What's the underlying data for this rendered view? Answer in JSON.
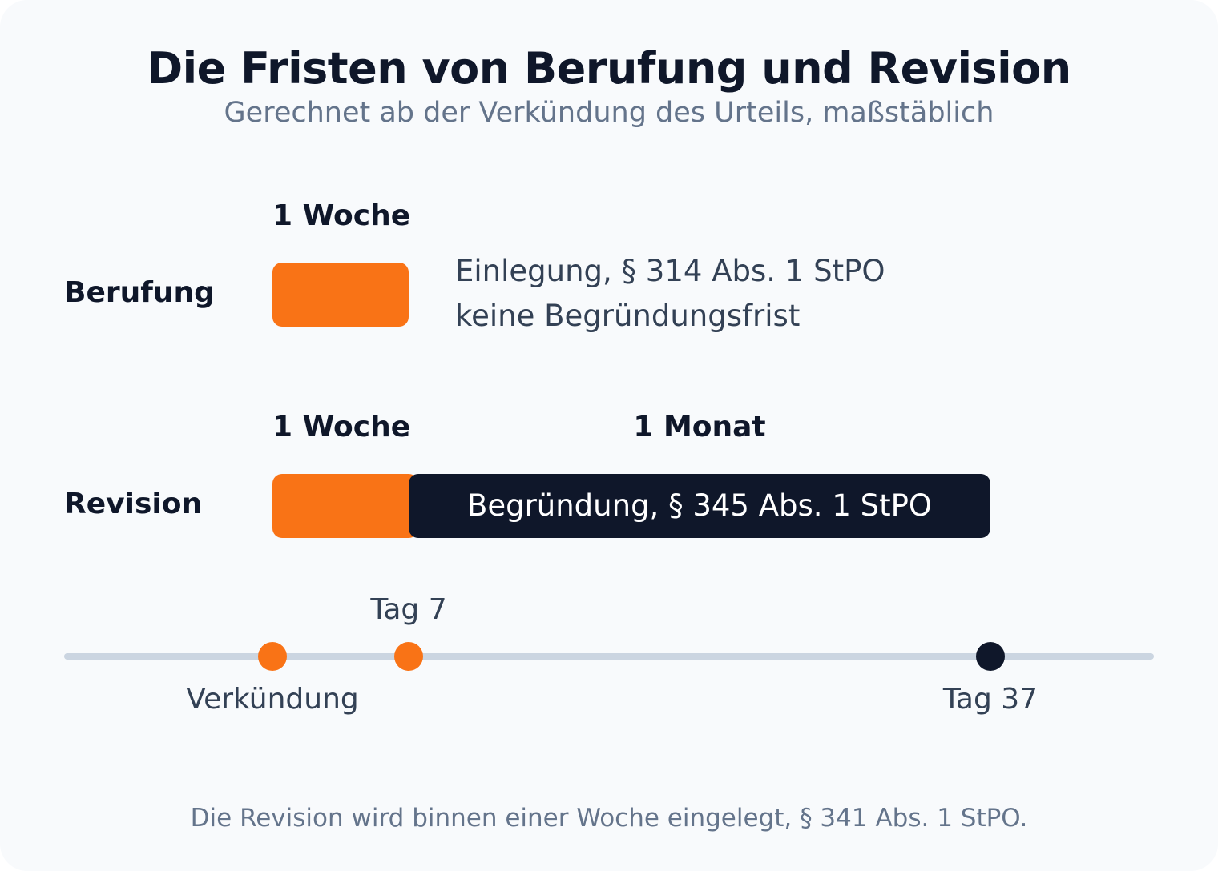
{
  "title": "Die Fristen von Berufung und Revision",
  "subtitle": "Gerechnet ab der Verkündung des Urteils, maßstäblich",
  "colors": {
    "accent": "#f97316",
    "dark": "#0f172a",
    "axis": "#cbd5e1",
    "background": "#f8fafc"
  },
  "rows": {
    "berufung": {
      "label": "Berufung",
      "duration_label": "1 Woche",
      "note_line1": "Einlegung, § 314 Abs. 1 StPO",
      "note_line2": "keine Begründungsfrist"
    },
    "revision": {
      "label": "Revision",
      "duration_label_1": "1 Woche",
      "duration_label_2": "1 Monat",
      "bar_text": "Begründung, § 345 Abs. 1 StPO"
    }
  },
  "timeline": {
    "start_label": "Verkündung",
    "day7_label": "Tag 7",
    "day37_label": "Tag 37"
  },
  "footnote": "Die Revision wird binnen einer Woche eingelegt, § 341 Abs. 1 StPO."
}
